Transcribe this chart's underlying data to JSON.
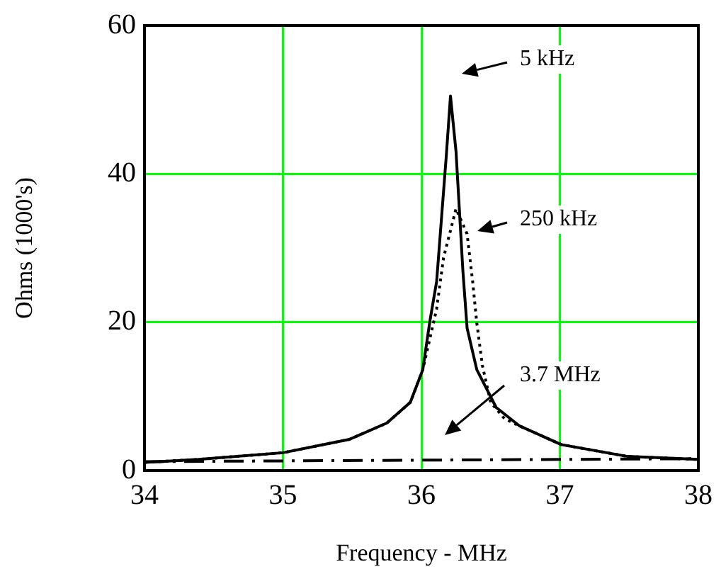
{
  "chart_data": {
    "type": "line",
    "xlabel": "Frequency - MHz",
    "ylabel": "Ohms (1000's)",
    "xlim": [
      34,
      38
    ],
    "xticks": [
      34,
      35,
      36,
      37,
      38
    ],
    "ylim": [
      0,
      60
    ],
    "yticks": [
      0,
      20,
      40,
      60
    ],
    "grid": true,
    "legend": false,
    "marker": "none",
    "series": [
      {
        "color": "#000000",
        "line_style": "solid",
        "x": [
          34,
          34.39,
          35,
          35.48,
          35.75,
          35.92,
          36.01,
          36.06,
          36.11,
          36.18,
          36.21,
          36.25,
          36.3,
          36.33,
          36.4,
          36.54,
          36.71,
          37.01,
          37.49,
          38
        ],
        "values": [
          1.1,
          1.5,
          2.4,
          4.2,
          6.4,
          9.2,
          13.6,
          20,
          25.5,
          42.5,
          50.5,
          43,
          26.8,
          19.2,
          13.6,
          8.5,
          6,
          3.5,
          1.9,
          1.5
        ]
      },
      {
        "color": "#000000",
        "line_style": "dotted",
        "x": [
          34,
          34.39,
          35,
          35.48,
          35.75,
          35.92,
          36.01,
          36.11,
          36.16,
          36.25,
          36.33,
          36.37,
          36.4,
          36.44,
          36.5,
          36.6,
          36.71,
          37.01,
          37.49,
          38
        ],
        "values": [
          1.1,
          1.5,
          2.4,
          4.2,
          6.4,
          9.2,
          13.6,
          21.8,
          28.7,
          35.3,
          31.9,
          25.5,
          19.9,
          14.2,
          9.2,
          7,
          6,
          3.5,
          1.9,
          1.5
        ]
      },
      {
        "color": "#000000",
        "line_style": "dashed",
        "x": [
          34,
          36,
          38
        ],
        "values": [
          1.2,
          1.4,
          1.6
        ]
      }
    ],
    "annotations": [
      "5 kHz",
      "250 kHz",
      "3.7 MHz"
    ]
  }
}
